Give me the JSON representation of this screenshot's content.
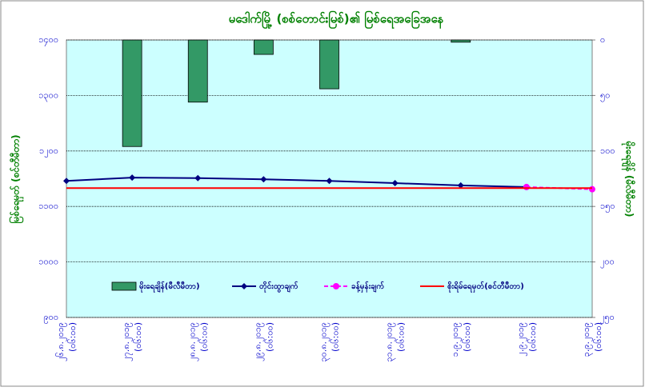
{
  "chart_data": {
    "type": "combo",
    "title": "မဒေါက်မြို့ (စစ်တောင်းမြစ်)၏ မြစ်ရေအခြေအနေ",
    "y_label": "မြစ်ရေမှတ် (စင်တီမီတာ)",
    "y2_label": "မိုးရေချိန် (မီလီမီတာ)",
    "categories": [
      "၂၆.၈.၂၀၁၉",
      "၂၇.၈.၂၀၁၉",
      "၂၈.၈.၂၀၁၉",
      "၂၉.၈.၂၀၁၉",
      "၃၀.၈.၂၀၁၉",
      "၃၁.၈.၂၀၁၉",
      "၁.၉.၂၀၁၉",
      "၂.၉.၂၀၁၉",
      "၃.၉.၂၀၁၉"
    ],
    "category_times": [
      "(၀၆:၀၀)",
      "(၀၆:၀၀)",
      "(၀၆:၀၀)",
      "(၀၆:၀၀)",
      "(၀၆:၀၀)",
      "(၀၆:၀၀)",
      "(၀၆:၀၀)",
      "(၀၆:၀၀)",
      "(၀၆:၀၀)"
    ],
    "ylim": [
      900,
      1400
    ],
    "yticks": [
      {
        "value": 1400,
        "label": "၁၄၀၀"
      },
      {
        "value": 1300,
        "label": "၁၃၀၀"
      },
      {
        "value": 1200,
        "label": "၁၂၀၀"
      },
      {
        "value": 1100,
        "label": "၁၁၀၀"
      },
      {
        "value": 1000,
        "label": "၁၀၀၀"
      },
      {
        "value": 900,
        "label": "၉၀၀"
      }
    ],
    "y2lim": [
      0,
      250
    ],
    "y2_inverted": true,
    "y2ticks": [
      {
        "value": 0,
        "label": "၀"
      },
      {
        "value": 50,
        "label": "၅၀"
      },
      {
        "value": 100,
        "label": "၁၀၀"
      },
      {
        "value": 150,
        "label": "၁၅၀"
      },
      {
        "value": 200,
        "label": "၂၀၀"
      },
      {
        "value": 250,
        "label": "၂၅၀"
      }
    ],
    "grid": true,
    "series": [
      {
        "name": "မိုးရေချိန်(မီလီမီတာ)",
        "kind": "bar",
        "axis": "y2",
        "color": "#339966",
        "values": [
          0,
          96,
          56,
          13,
          44,
          0,
          2,
          null,
          null
        ]
      },
      {
        "name": "တိုင်းထွာချက်",
        "kind": "line",
        "marker": "diamond",
        "color": "#000080",
        "values": [
          1146,
          1152,
          1151,
          1149,
          1146,
          1142,
          1138,
          1135,
          null
        ]
      },
      {
        "name": "ခန့်မှန်းချက်",
        "kind": "line",
        "marker": "circle",
        "dash": true,
        "color": "#ff00ff",
        "values": [
          null,
          null,
          null,
          null,
          null,
          null,
          null,
          1135,
          1131
        ]
      },
      {
        "name": "စိုးရိမ်ရေမှတ်(စင်တီမီတာ)",
        "kind": "line",
        "color": "#ff0000",
        "values": [
          1133,
          1133,
          1133,
          1133,
          1133,
          1133,
          1133,
          1133,
          1133
        ]
      }
    ]
  }
}
